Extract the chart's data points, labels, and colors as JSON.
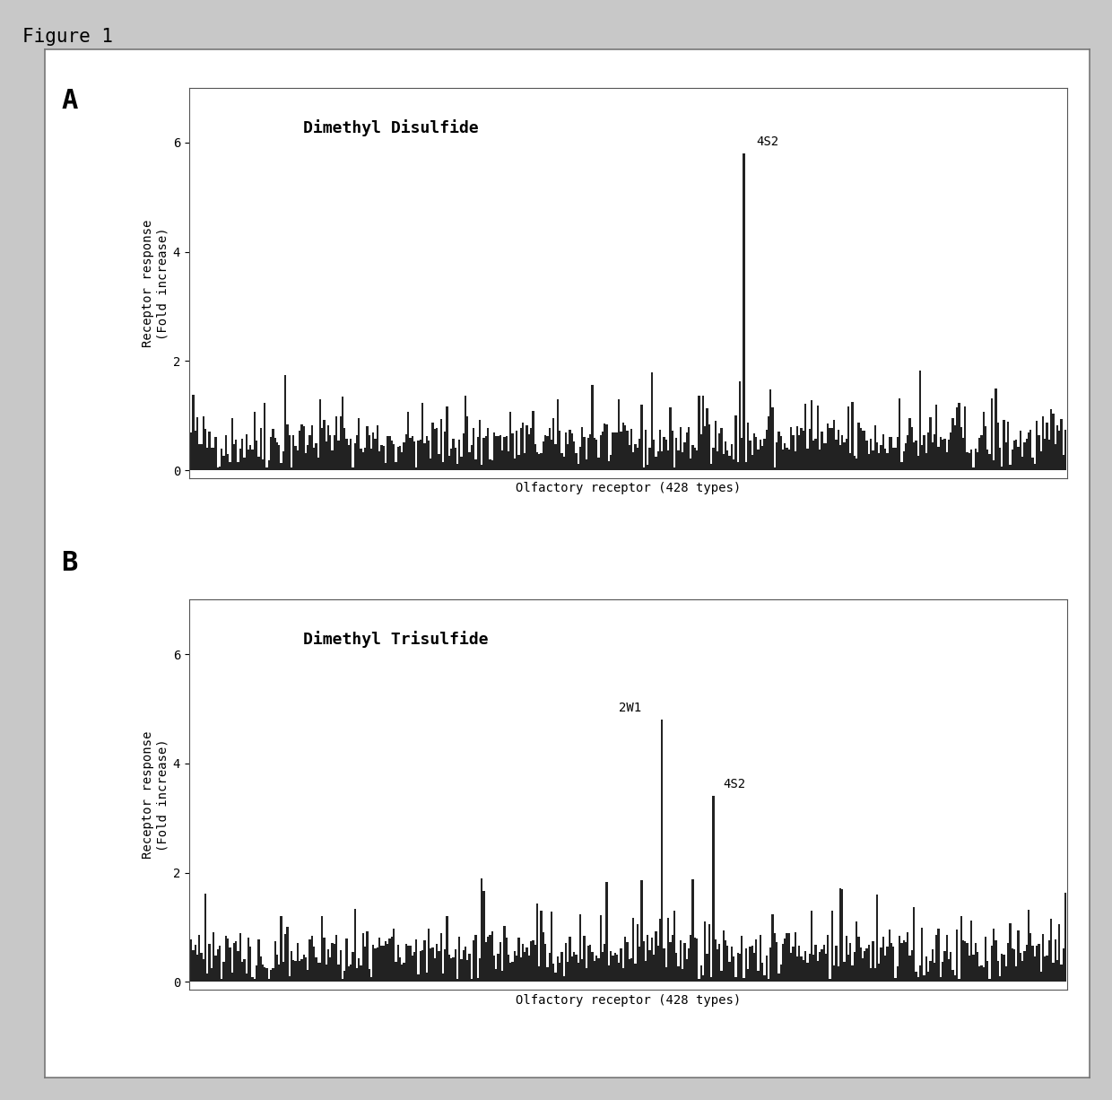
{
  "figure_title": "Figure 1",
  "n_receptors": 428,
  "panel_A": {
    "label": "A",
    "title": "Dimethyl Disulfide",
    "xlabel": "Olfactory receptor (428 types)",
    "ylabel_line1": "Receptor response",
    "ylabel_line2": "(Fold increase)",
    "ylim": [
      -0.15,
      7.0
    ],
    "yticks": [
      0,
      2,
      4,
      6
    ],
    "peak_index": 270,
    "peak_value": 5.8,
    "peak_label": "4S2",
    "baseline": 0.55,
    "noise_scale": 0.28,
    "spike_prob": 0.06,
    "spike_range": [
      1.1,
      1.9
    ]
  },
  "panel_B": {
    "label": "B",
    "title": "Dimethyl Trisulfide",
    "xlabel": "Olfactory receptor (428 types)",
    "ylabel_line1": "Receptor response",
    "ylabel_line2": "(Fold increase)",
    "ylim": [
      -0.15,
      7.0
    ],
    "yticks": [
      0,
      2,
      4,
      6
    ],
    "peak_index_1": 230,
    "peak_value_1": 4.8,
    "peak_label_1": "2W1",
    "peak_index_2": 255,
    "peak_value_2": 3.4,
    "peak_label_2": "4S2",
    "baseline": 0.55,
    "noise_scale": 0.28,
    "spike_prob": 0.06,
    "spike_range": [
      1.1,
      1.9
    ]
  },
  "bar_color": "#222222",
  "bg_color": "#ffffff",
  "border_color": "#777777",
  "outer_bg": "#c8c8c8",
  "panel_bg": "#e8e8e8",
  "fig_title_fontsize": 15,
  "label_fontsize": 22,
  "title_fontsize": 13,
  "ylabel_fontsize": 10,
  "xlabel_fontsize": 10,
  "tick_fontsize": 10,
  "peak_label_fontsize": 10
}
